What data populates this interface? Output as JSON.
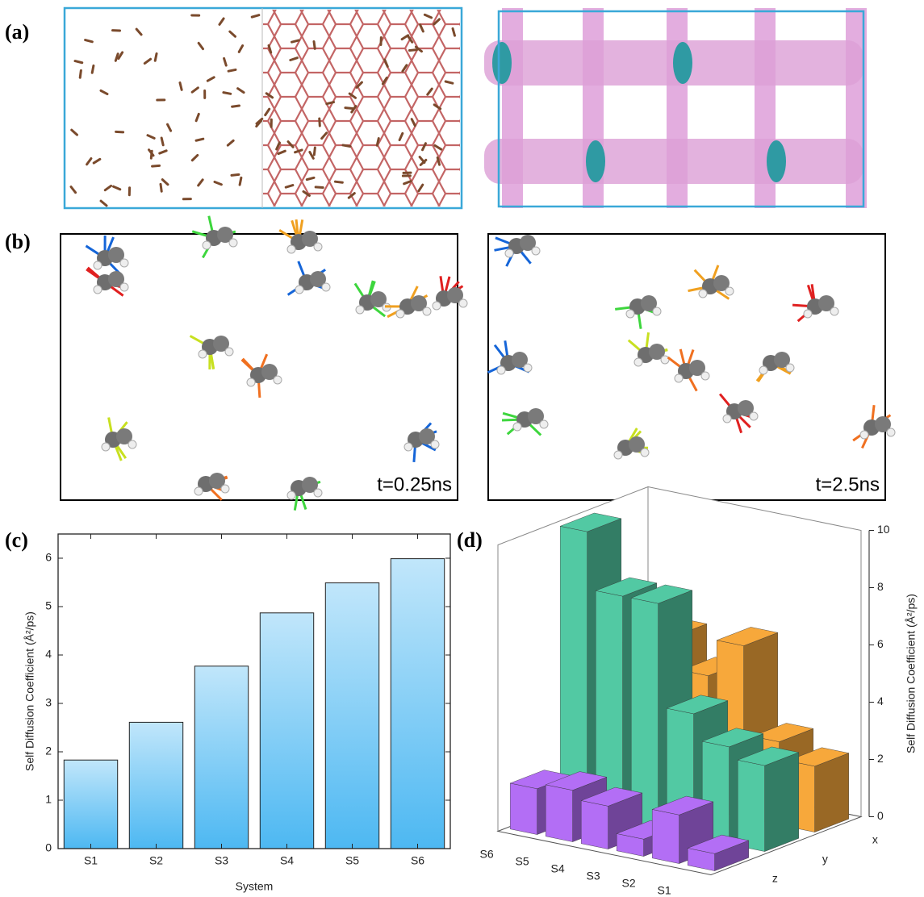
{
  "figure": {
    "panel_labels": [
      "(a)",
      "(b)",
      "(c)",
      "(d)"
    ],
    "time_labels": [
      "t=0.25ns",
      "t=2.5ns"
    ]
  },
  "chart_data": [
    {
      "type": "bar",
      "categories": [
        "S1",
        "S2",
        "S3",
        "S4",
        "S5",
        "S6"
      ],
      "values": [
        1.83,
        2.61,
        3.77,
        4.87,
        5.49,
        5.99
      ],
      "color": "#4db8f2",
      "xlabel": "System",
      "ylabel": "Self Diffusion Coefficient (Å²/ps)",
      "ylim": [
        0,
        6.5
      ],
      "yticks": [
        0,
        1,
        2,
        3,
        4,
        5,
        6
      ]
    },
    {
      "type": "bar3d",
      "categories": [
        "S1",
        "S2",
        "S3",
        "S4",
        "S5",
        "S6"
      ],
      "series": [
        {
          "name": "z",
          "color": "#b36ef5",
          "values": [
            0.6,
            1.7,
            0.6,
            1.5,
            1.8,
            1.6
          ]
        },
        {
          "name": "y",
          "color": "#52c9a3",
          "values": [
            3.0,
            3.4,
            4.3,
            7.9,
            7.9,
            9.9
          ]
        },
        {
          "name": "x",
          "color": "#f7a83b",
          "values": [
            2.3,
            2.9,
            6.0,
            4.7,
            5.8,
            5.0
          ]
        }
      ],
      "ylabel": "Self Diffusion Coefficient (Å²/ps)",
      "ylim": [
        0,
        10
      ],
      "yticks": [
        0,
        2,
        4,
        6,
        8,
        10
      ]
    }
  ]
}
